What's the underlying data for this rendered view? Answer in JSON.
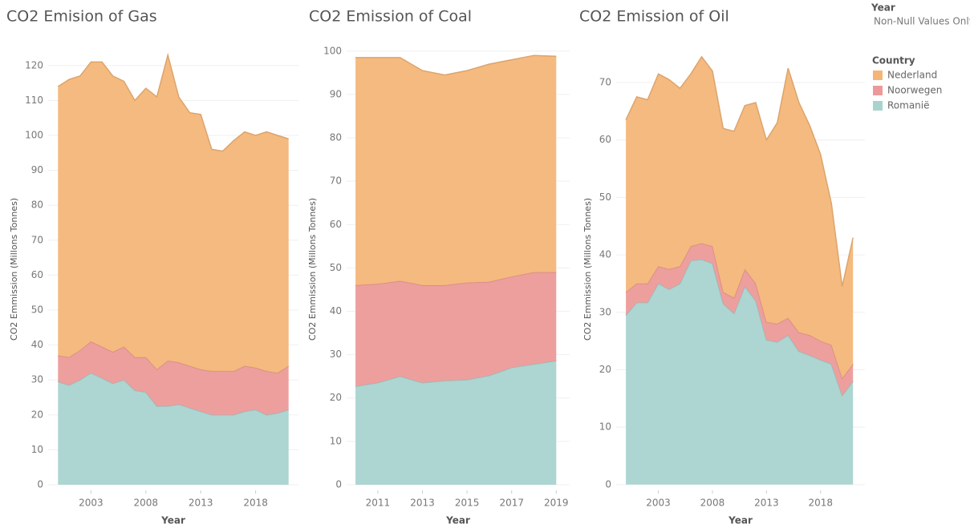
{
  "chart_data": [
    {
      "type": "stacked_area",
      "title": "CO2 Emision of Gas",
      "x_label": "Year",
      "y_label": "CO2 Emmission (Millons Tonnes)",
      "x": [
        2000,
        2001,
        2002,
        2003,
        2004,
        2005,
        2006,
        2007,
        2008,
        2009,
        2010,
        2011,
        2012,
        2013,
        2014,
        2015,
        2016,
        2017,
        2018,
        2019,
        2020,
        2021
      ],
      "series": [
        {
          "name": "Romanië",
          "color": "#a9d3cf",
          "values": [
            29.5,
            28.5,
            30,
            32,
            30.5,
            29,
            30,
            27,
            26.5,
            22.5,
            22.5,
            23,
            22,
            21,
            20,
            20,
            20,
            21,
            21.5,
            20,
            20.5,
            21.5
          ]
        },
        {
          "name": "Noorwegen",
          "color": "#ec9a99",
          "values": [
            7.5,
            8,
            8.5,
            9,
            9,
            9,
            9.5,
            9.5,
            10,
            10.5,
            13,
            12,
            12,
            12,
            12.5,
            12.5,
            12.5,
            13,
            12,
            12.5,
            11.5,
            12.5
          ]
        },
        {
          "name": "Nederland",
          "color": "#f4b678",
          "values": [
            77,
            79.5,
            78.5,
            80,
            81.5,
            79,
            76,
            73.5,
            77,
            78,
            87.5,
            76,
            72.5,
            73,
            63.5,
            63,
            66,
            67,
            66.5,
            68.5,
            68,
            65
          ]
        }
      ],
      "xlim": [
        1999.1,
        2021.9
      ],
      "xticks": [
        2003,
        2008,
        2013,
        2018
      ],
      "ylim": [
        -1.6,
        125
      ],
      "yticks": [
        0,
        10,
        20,
        30,
        40,
        50,
        60,
        70,
        80,
        90,
        100,
        110,
        120
      ],
      "grid": true
    },
    {
      "type": "stacked_area",
      "title": "CO2 Emission of Coal",
      "x_label": "Year",
      "y_label": "CO2 Emmission (Millons Tonnes)",
      "x": [
        2010,
        2011,
        2012,
        2013,
        2014,
        2015,
        2016,
        2017,
        2018,
        2019
      ],
      "series": [
        {
          "name": "Romanië",
          "color": "#a9d3cf",
          "values": [
            22.7,
            23.5,
            25,
            23.5,
            24,
            24.2,
            25.2,
            27,
            27.8,
            28.6
          ]
        },
        {
          "name": "Noorwegen",
          "color": "#ec9a99",
          "values": [
            23.3,
            22.8,
            22,
            22.5,
            22,
            22.4,
            21.6,
            21,
            21.2,
            20.4
          ]
        },
        {
          "name": "Nederland",
          "color": "#f4b678",
          "values": [
            52.5,
            52.2,
            51.5,
            49.5,
            48.5,
            48.9,
            50.2,
            50,
            50,
            49.8
          ]
        }
      ],
      "xlim": [
        2009.6,
        2019.6
      ],
      "xticks": [
        2011,
        2013,
        2015,
        2017,
        2019
      ],
      "ylim": [
        -1.3,
        100.7
      ],
      "yticks": [
        0,
        10,
        20,
        30,
        40,
        50,
        60,
        70,
        80,
        90,
        100
      ],
      "grid": true
    },
    {
      "type": "stacked_area",
      "title": "CO2 Emission of Oil",
      "x_label": "Year",
      "y_label": "CO2 Emmission (Millons Tonnes)",
      "x": [
        2000,
        2001,
        2002,
        2003,
        2004,
        2005,
        2006,
        2007,
        2008,
        2009,
        2010,
        2011,
        2012,
        2013,
        2014,
        2015,
        2016,
        2017,
        2018,
        2019,
        2020,
        2021
      ],
      "series": [
        {
          "name": "Romanië",
          "color": "#a9d3cf",
          "values": [
            29.5,
            31.7,
            31.7,
            35,
            34,
            35,
            39,
            39.2,
            38.5,
            31.5,
            29.8,
            34.5,
            32,
            25.2,
            24.8,
            26,
            23.2,
            22.5,
            21.7,
            21,
            15.5,
            18
          ]
        },
        {
          "name": "Noorwegen",
          "color": "#ec9a99",
          "values": [
            4,
            3.3,
            3.3,
            3,
            3.5,
            3,
            2.5,
            2.8,
            3,
            2,
            2.7,
            3,
            3,
            3.1,
            3.2,
            3,
            3.3,
            3.5,
            3.3,
            3.3,
            3,
            3
          ]
        },
        {
          "name": "Nederland",
          "color": "#f4b678",
          "values": [
            30,
            32.5,
            32,
            33.5,
            33,
            31,
            30,
            32.5,
            30.5,
            28.5,
            29,
            28.5,
            31.5,
            31.7,
            35,
            43.5,
            40,
            36.5,
            32.5,
            24.7,
            16,
            22
          ]
        }
      ],
      "xlim": [
        1999.1,
        2022.1
      ],
      "xticks": [
        2003,
        2008,
        2013,
        2018
      ],
      "ylim": [
        -1,
        76
      ],
      "yticks": [
        0,
        10,
        20,
        30,
        40,
        50,
        60,
        70
      ],
      "grid": true
    }
  ],
  "legend": {
    "filter_title": "Year",
    "filter_value": "Non-Null Values Only",
    "title": "Country"
  }
}
